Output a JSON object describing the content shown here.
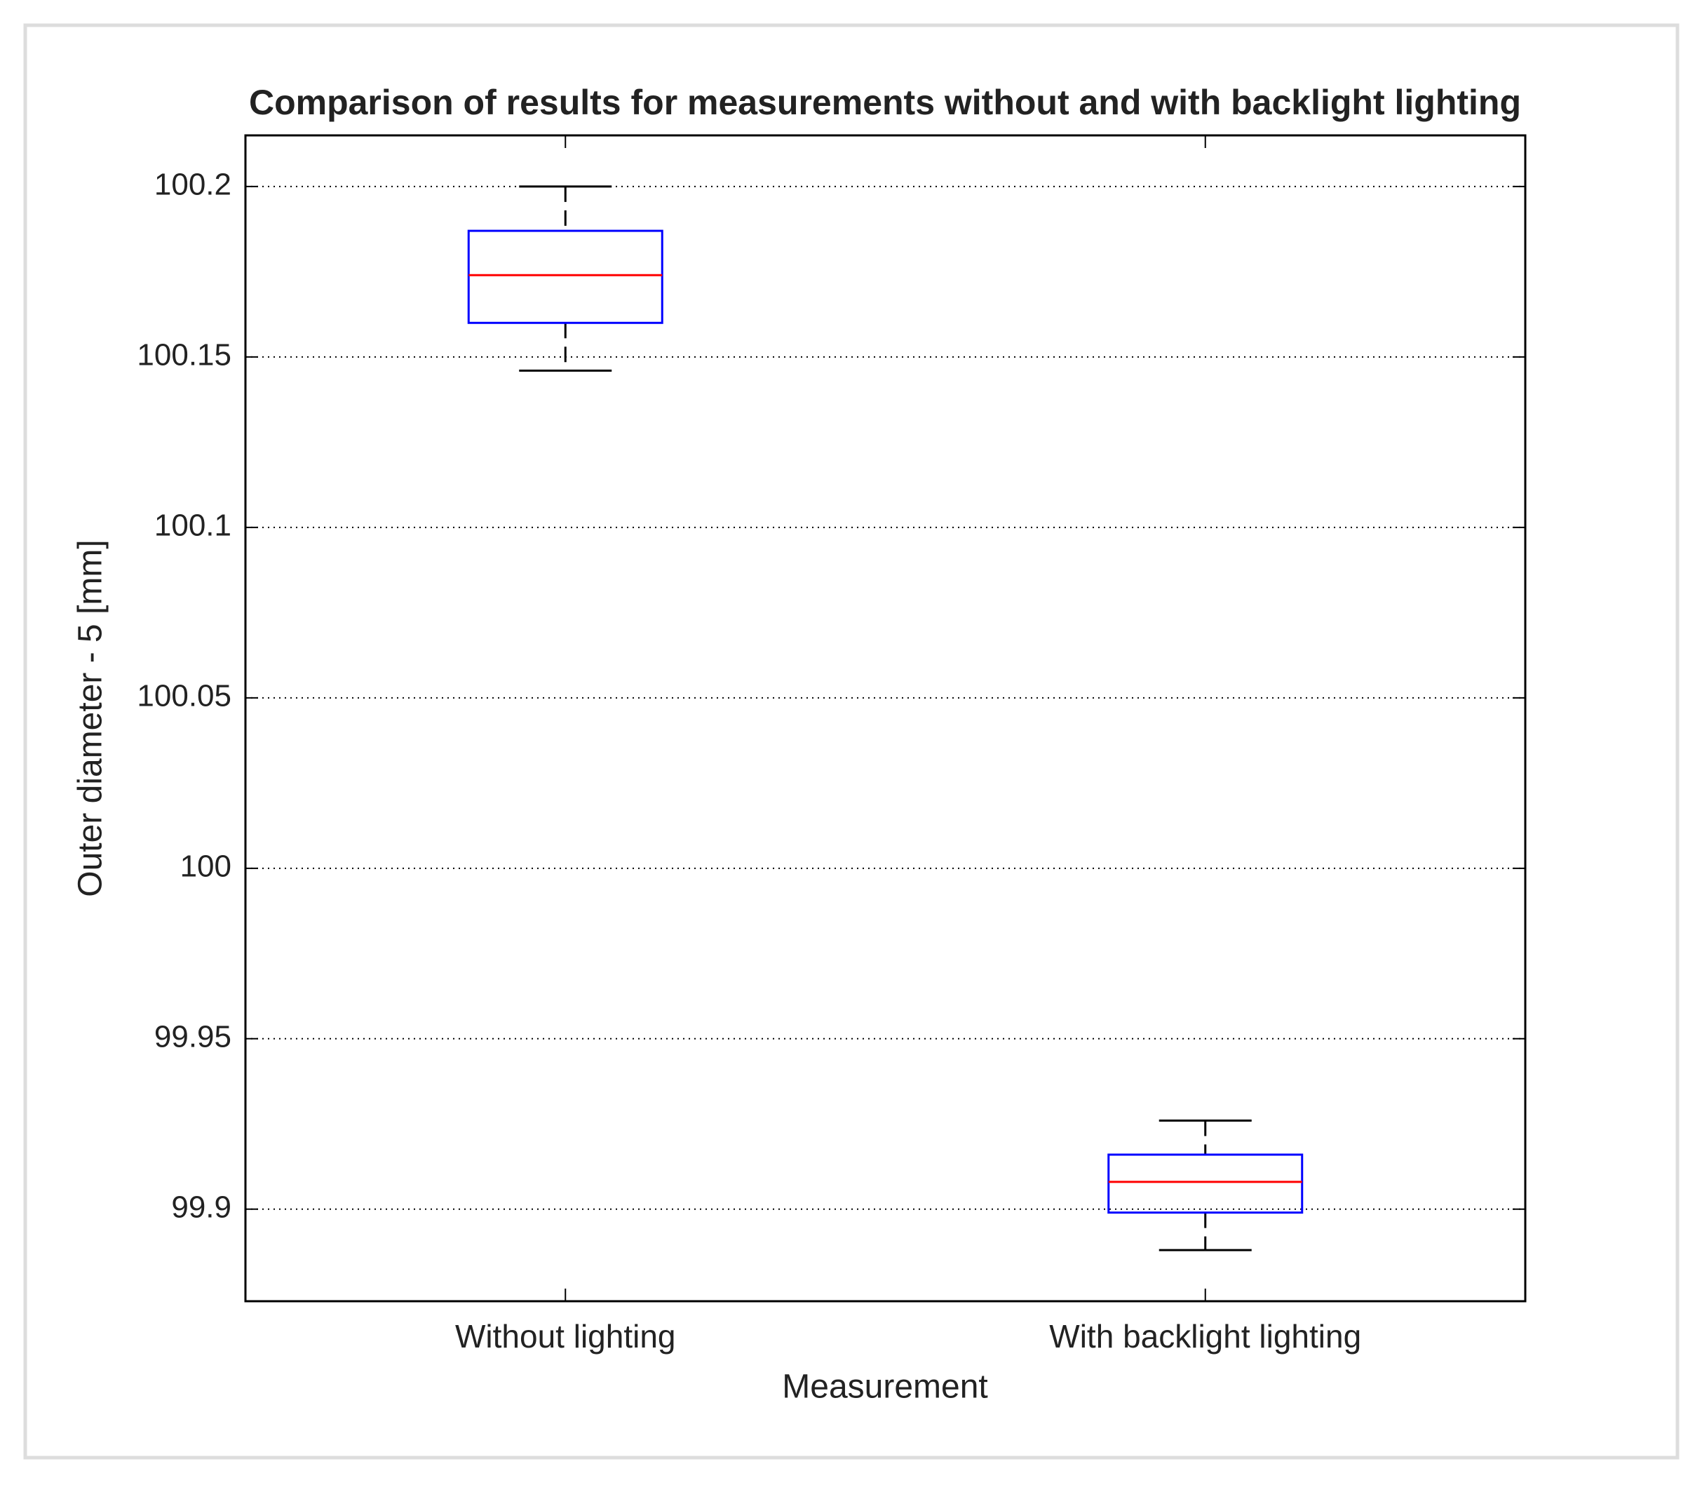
{
  "chart_data": {
    "type": "box",
    "title": "Comparison of results for measurements without and with backlight lighting",
    "x_label": "Measurement",
    "y_label": "Outer diameter - 5 [mm]",
    "categories": [
      "Without lighting",
      "With backlight lighting"
    ],
    "whisker_high": [
      100.2,
      99.926
    ],
    "q3": [
      100.187,
      99.916
    ],
    "median": [
      100.174,
      99.908
    ],
    "q1": [
      100.16,
      99.899
    ],
    "whisker_low": [
      100.146,
      99.888
    ],
    "box_color": "#0000ff",
    "median_color": "#ff0000",
    "whisker_color": "#000000",
    "ylim": [
      99.873,
      100.215
    ],
    "yticks": [
      99.9,
      99.95,
      100,
      100.05,
      100.1,
      100.15,
      100.2
    ],
    "grid": true
  }
}
